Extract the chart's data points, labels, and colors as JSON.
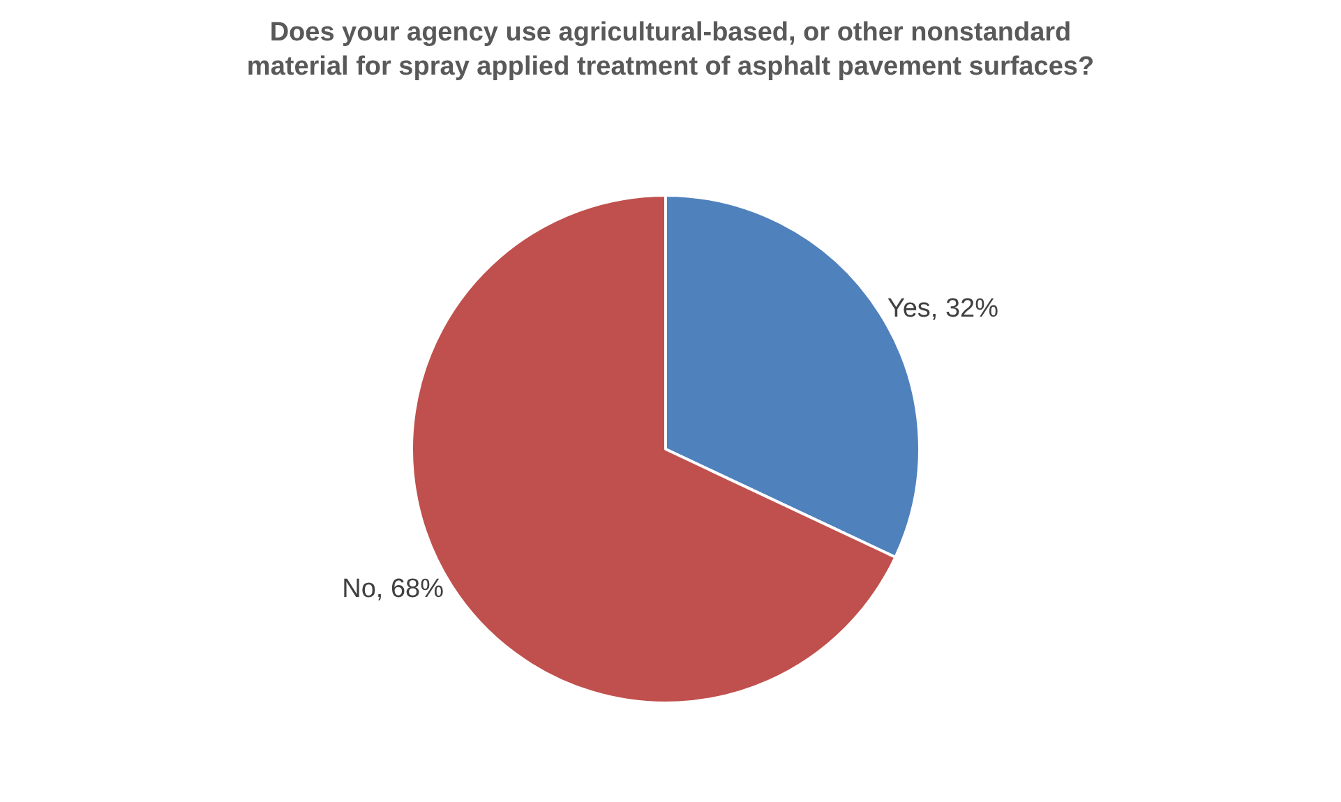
{
  "chart_data": {
    "type": "pie",
    "title": "Does your agency use agricultural-based, or other nonstandard\nmaterial for spray applied treatment of asphalt pavement surfaces?",
    "categories": [
      "Yes",
      "No"
    ],
    "values": [
      32,
      68
    ],
    "value_labels": [
      "32%",
      "68%"
    ],
    "colors": [
      "#4f81bd",
      "#c0504d"
    ],
    "legend": false
  }
}
